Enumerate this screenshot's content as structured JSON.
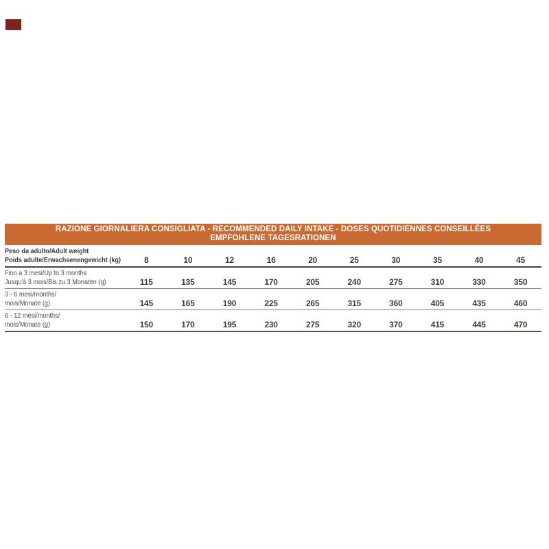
{
  "page": {
    "background": "#ffffff"
  },
  "brand_mark": {
    "color": "#7a2421"
  },
  "table": {
    "title_line1": "RAZIONE GIORNALIERA CONSIGLIATA - RECOMMENDED DAILY INTAKE - DOSES QUOTIDIENNES CONSEILLÉES",
    "title_line2": "EMPFOHLENE TAGESRATIONEN",
    "header": {
      "label_line1": "Peso da adulto/Adult weight",
      "label_line2": "Poids adulte/Erwachsenengewicht (kg)",
      "weights": [
        "8",
        "10",
        "12",
        "16",
        "20",
        "25",
        "30",
        "35",
        "40",
        "45"
      ]
    },
    "rows": [
      {
        "label_line1": "Fino a 3 mesi/Up to 3 months",
        "label_line2": "Jusqu'à 3 mois/Bis zu 3 Monaten (g)",
        "values": [
          "115",
          "135",
          "145",
          "170",
          "205",
          "240",
          "275",
          "310",
          "330",
          "350"
        ]
      },
      {
        "label_line1": "3 - 6 mesi/months/",
        "label_line2": "mois/Monate (g)",
        "values": [
          "145",
          "165",
          "190",
          "225",
          "265",
          "315",
          "360",
          "405",
          "435",
          "460"
        ]
      },
      {
        "label_line1": "6 - 12 mesi/months/",
        "label_line2": "mois/Monate (g)",
        "values": [
          "150",
          "170",
          "195",
          "230",
          "275",
          "320",
          "370",
          "415",
          "445",
          "470"
        ]
      }
    ],
    "colors": {
      "band_background": "#c96a32",
      "band_text": "#ffffff",
      "header_rule": "#44403b",
      "row_rule": "#b3765b",
      "bottom_rule": "#5e5048",
      "label_text": "#4b4b4b",
      "number_text": "#3b3b3b"
    }
  }
}
